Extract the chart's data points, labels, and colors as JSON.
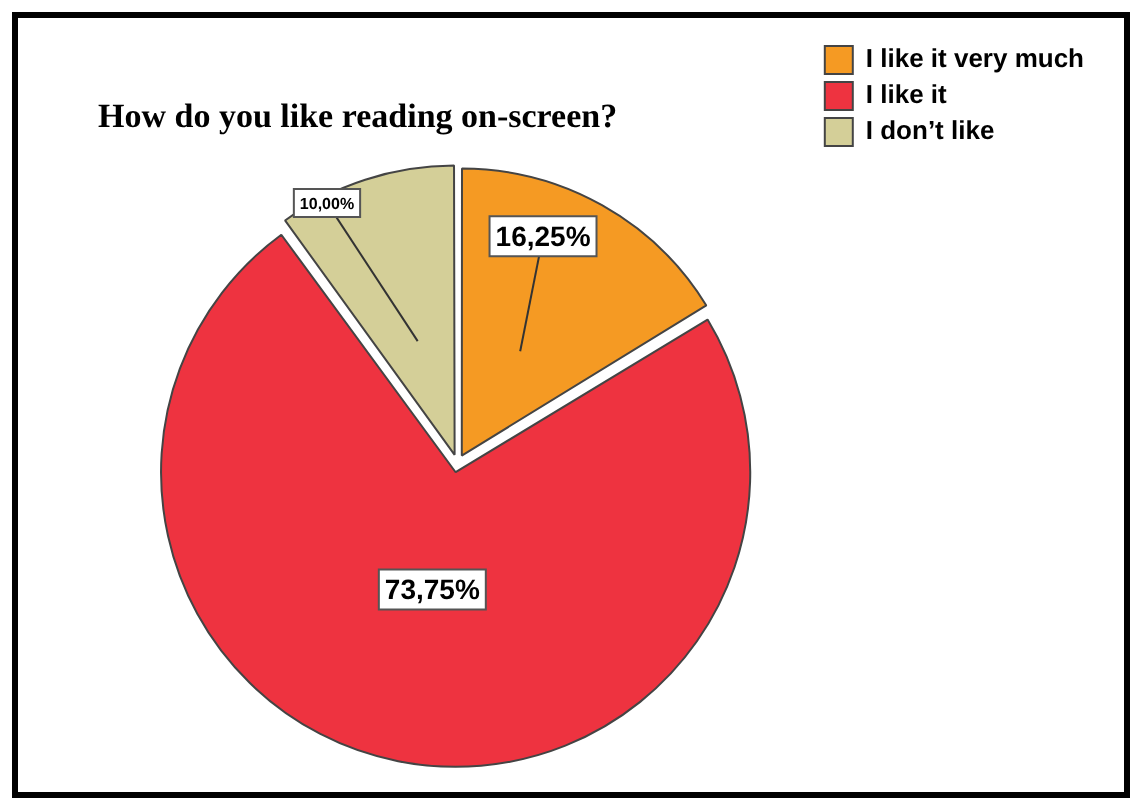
{
  "chart_data": {
    "type": "pie",
    "title": "How do you like reading on-screen?",
    "categories": [
      "I like it very much",
      "I like it",
      "I don’t like"
    ],
    "values": [
      16.25,
      73.75,
      10.0
    ],
    "colors": [
      "#f59a23",
      "#ee3340",
      "#d4cf98"
    ],
    "value_labels": [
      "16,25%",
      "73,75%",
      "10,00%"
    ],
    "legend": "top right"
  }
}
